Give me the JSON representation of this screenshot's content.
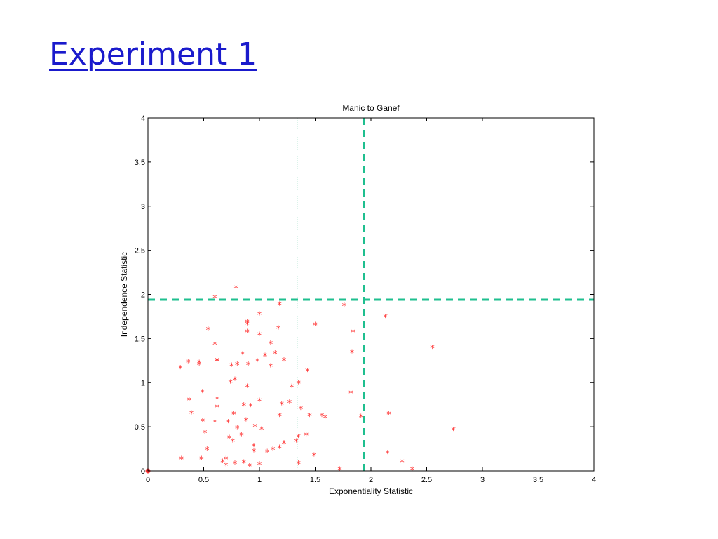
{
  "slide": {
    "title": "Experiment 1"
  },
  "chart_data": {
    "type": "scatter",
    "title": "Manic to Ganef",
    "xlabel": "Exponentiality Statistic",
    "ylabel": "Independence Statistic",
    "xlim": [
      0,
      4
    ],
    "ylim": [
      0,
      4
    ],
    "xticks": [
      "0",
      "0.5",
      "1",
      "1.5",
      "2",
      "2.5",
      "3",
      "3.5",
      "4"
    ],
    "xtick_values": [
      0,
      0.5,
      1,
      1.5,
      2,
      2.5,
      3,
      3.5,
      4
    ],
    "yticks": [
      "0",
      "0.5",
      "1",
      "1.5",
      "2",
      "2.5",
      "3",
      "3.5",
      "4"
    ],
    "ytick_values": [
      0,
      0.5,
      1,
      1.5,
      2,
      2.5,
      3,
      3.5,
      4
    ],
    "grid": false,
    "marker": "*",
    "colors": {
      "points": "#ff3333",
      "threshold": "#1fbf8f",
      "axes": "#000000"
    },
    "threshold_lines": [
      {
        "orientation": "vertical",
        "value": 1.94,
        "style": "dashed"
      },
      {
        "orientation": "horizontal",
        "value": 1.94,
        "style": "dashed"
      }
    ],
    "reference_lines": [
      {
        "orientation": "vertical",
        "value": 1.34,
        "style": "dotted"
      }
    ],
    "origin_marker": {
      "x": 0,
      "y": 0
    },
    "series": [
      {
        "points": [
          [
            0.29,
            1.16
          ],
          [
            0.36,
            1.23
          ],
          [
            0.46,
            1.2
          ],
          [
            0.46,
            1.22
          ],
          [
            0.62,
            1.25
          ],
          [
            0.62,
            1.24
          ],
          [
            0.75,
            1.19
          ],
          [
            0.74,
            1.0
          ],
          [
            0.8,
            1.2
          ],
          [
            0.85,
            1.32
          ],
          [
            0.9,
            1.2
          ],
          [
            0.98,
            1.24
          ],
          [
            1.05,
            1.3
          ],
          [
            1.1,
            1.18
          ],
          [
            1.14,
            1.33
          ],
          [
            1.22,
            1.25
          ],
          [
            1.29,
            0.95
          ],
          [
            1.35,
            0.99
          ],
          [
            1.43,
            1.13
          ],
          [
            0.78,
            1.03
          ],
          [
            0.89,
            0.95
          ],
          [
            0.37,
            0.8
          ],
          [
            0.49,
            0.89
          ],
          [
            0.62,
            0.81
          ],
          [
            0.77,
            0.64
          ],
          [
            0.62,
            0.72
          ],
          [
            0.86,
            0.74
          ],
          [
            0.92,
            0.73
          ],
          [
            1.0,
            0.79
          ],
          [
            1.2,
            0.75
          ],
          [
            1.27,
            0.77
          ],
          [
            0.39,
            0.65
          ],
          [
            0.49,
            0.56
          ],
          [
            0.6,
            0.55
          ],
          [
            0.72,
            0.55
          ],
          [
            0.8,
            0.48
          ],
          [
            0.88,
            0.57
          ],
          [
            0.96,
            0.5
          ],
          [
            1.02,
            0.47
          ],
          [
            1.18,
            0.62
          ],
          [
            1.37,
            0.7
          ],
          [
            1.45,
            0.62
          ],
          [
            1.56,
            0.62
          ],
          [
            1.59,
            0.6
          ],
          [
            0.51,
            0.43
          ],
          [
            0.73,
            0.37
          ],
          [
            0.76,
            0.33
          ],
          [
            0.84,
            0.4
          ],
          [
            0.95,
            0.28
          ],
          [
            1.07,
            0.21
          ],
          [
            1.12,
            0.24
          ],
          [
            1.18,
            0.26
          ],
          [
            1.22,
            0.31
          ],
          [
            1.33,
            0.33
          ],
          [
            1.35,
            0.38
          ],
          [
            1.42,
            0.4
          ],
          [
            0.3,
            0.13
          ],
          [
            0.48,
            0.13
          ],
          [
            0.53,
            0.24
          ],
          [
            0.67,
            0.1
          ],
          [
            0.7,
            0.13
          ],
          [
            0.7,
            0.06
          ],
          [
            0.78,
            0.08
          ],
          [
            0.86,
            0.09
          ],
          [
            0.91,
            0.05
          ],
          [
            0.95,
            0.22
          ],
          [
            1.0,
            0.07
          ],
          [
            1.35,
            0.08
          ],
          [
            1.49,
            0.17
          ],
          [
            0.54,
            1.6
          ],
          [
            0.6,
            1.43
          ],
          [
            0.89,
            1.57
          ],
          [
            0.89,
            1.66
          ],
          [
            0.89,
            1.68
          ],
          [
            1.0,
            1.77
          ],
          [
            1.0,
            1.54
          ],
          [
            1.1,
            1.44
          ],
          [
            1.17,
            1.61
          ],
          [
            1.18,
            1.88
          ],
          [
            0.6,
            1.96
          ],
          [
            0.79,
            2.07
          ],
          [
            1.5,
            1.65
          ],
          [
            1.76,
            1.87
          ],
          [
            1.84,
            1.57
          ],
          [
            1.83,
            1.34
          ],
          [
            1.82,
            0.88
          ],
          [
            1.91,
            0.61
          ],
          [
            1.72,
            0.01
          ],
          [
            2.13,
            1.74
          ],
          [
            2.55,
            1.39
          ],
          [
            2.16,
            0.64
          ],
          [
            2.74,
            0.46
          ],
          [
            2.15,
            0.2
          ],
          [
            2.28,
            0.1
          ],
          [
            2.37,
            0.01
          ]
        ]
      }
    ]
  }
}
